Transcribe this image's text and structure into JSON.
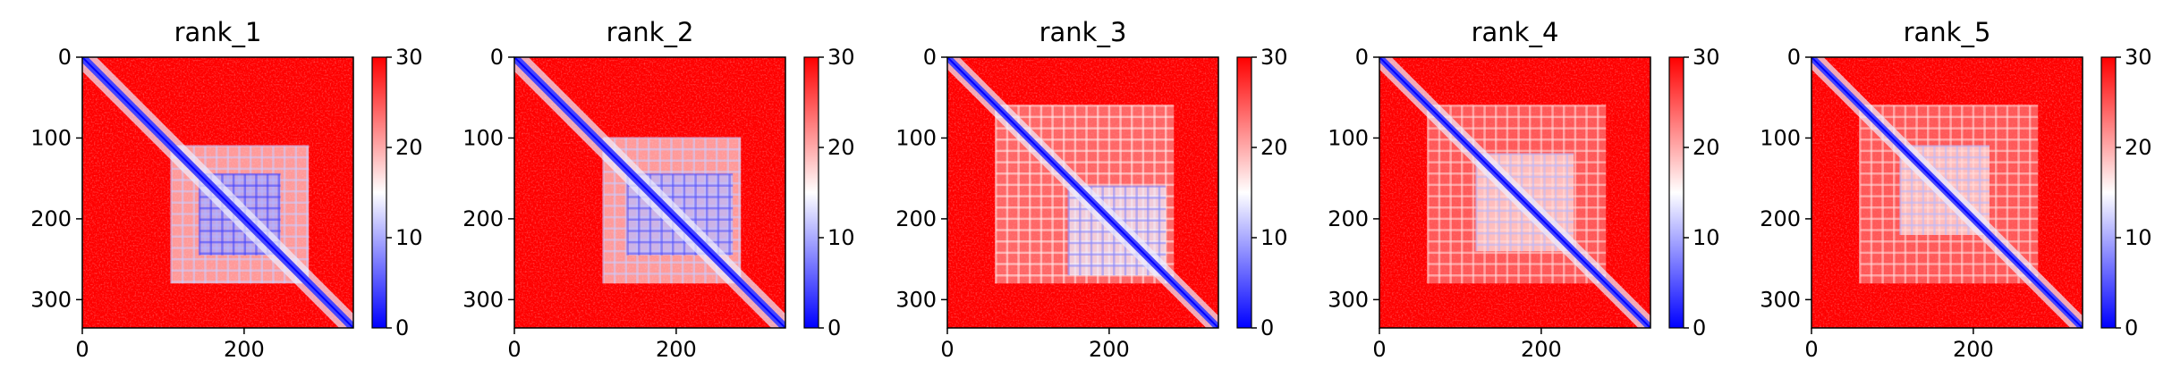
{
  "chart_data": [
    {
      "type": "heatmap",
      "title": "rank_1",
      "xlabel": "",
      "ylabel": "",
      "xlim": [
        0,
        335
      ],
      "ylim": [
        335,
        0
      ],
      "xticks": [
        0,
        200
      ],
      "yticks": [
        0,
        100,
        200,
        300
      ],
      "colorbar": {
        "min": 0,
        "max": 30,
        "ticks": [
          0,
          10,
          20,
          30
        ],
        "colormap": [
          "#0000ff",
          "#ffffff",
          "#ff0000"
        ]
      },
      "diagonal_band_width": 7,
      "blocks": [
        {
          "x0": 110,
          "x1": 280,
          "y0": 110,
          "y1": 280,
          "level": 18,
          "grid": true
        },
        {
          "x0": 145,
          "x1": 245,
          "y0": 145,
          "y1": 245,
          "level": 10,
          "grid": true
        }
      ]
    },
    {
      "type": "heatmap",
      "title": "rank_2",
      "xlabel": "",
      "ylabel": "",
      "xlim": [
        0,
        335
      ],
      "ylim": [
        335,
        0
      ],
      "xticks": [
        0,
        200
      ],
      "yticks": [
        0,
        100,
        200,
        300
      ],
      "colorbar": {
        "min": 0,
        "max": 30,
        "ticks": [
          0,
          10,
          20,
          30
        ],
        "colormap": [
          "#0000ff",
          "#ffffff",
          "#ff0000"
        ]
      },
      "diagonal_band_width": 7,
      "blocks": [
        {
          "x0": 110,
          "x1": 280,
          "y0": 100,
          "y1": 280,
          "level": 18,
          "grid": true
        },
        {
          "x0": 140,
          "x1": 270,
          "y0": 145,
          "y1": 245,
          "level": 11,
          "grid": true
        }
      ]
    },
    {
      "type": "heatmap",
      "title": "rank_3",
      "xlabel": "",
      "ylabel": "",
      "xlim": [
        0,
        335
      ],
      "ylim": [
        335,
        0
      ],
      "xticks": [
        0,
        200
      ],
      "yticks": [
        0,
        100,
        200,
        300
      ],
      "colorbar": {
        "min": 0,
        "max": 30,
        "ticks": [
          0,
          10,
          20,
          30
        ],
        "colormap": [
          "#0000ff",
          "#ffffff",
          "#ff0000"
        ]
      },
      "diagonal_band_width": 6,
      "blocks": [
        {
          "x0": 60,
          "x1": 280,
          "y0": 60,
          "y1": 280,
          "level": 22,
          "grid": true
        },
        {
          "x0": 150,
          "x1": 270,
          "y0": 160,
          "y1": 270,
          "level": 14,
          "grid": true
        }
      ]
    },
    {
      "type": "heatmap",
      "title": "rank_4",
      "xlabel": "",
      "ylabel": "",
      "xlim": [
        0,
        335
      ],
      "ylim": [
        335,
        0
      ],
      "xticks": [
        0,
        200
      ],
      "yticks": [
        0,
        100,
        200,
        300
      ],
      "colorbar": {
        "min": 0,
        "max": 30,
        "ticks": [
          0,
          10,
          20,
          30
        ],
        "colormap": [
          "#0000ff",
          "#ffffff",
          "#ff0000"
        ]
      },
      "diagonal_band_width": 6,
      "blocks": [
        {
          "x0": 60,
          "x1": 280,
          "y0": 60,
          "y1": 280,
          "level": 23,
          "grid": true
        },
        {
          "x0": 120,
          "x1": 240,
          "y0": 120,
          "y1": 240,
          "level": 17,
          "grid": true
        }
      ]
    },
    {
      "type": "heatmap",
      "title": "rank_5",
      "xlabel": "",
      "ylabel": "",
      "xlim": [
        0,
        335
      ],
      "ylim": [
        335,
        0
      ],
      "xticks": [
        0,
        200
      ],
      "yticks": [
        0,
        100,
        200,
        300
      ],
      "colorbar": {
        "min": 0,
        "max": 30,
        "ticks": [
          0,
          10,
          20,
          30
        ],
        "colormap": [
          "#0000ff",
          "#ffffff",
          "#ff0000"
        ]
      },
      "diagonal_band_width": 6,
      "blocks": [
        {
          "x0": 60,
          "x1": 280,
          "y0": 60,
          "y1": 280,
          "level": 23,
          "grid": true
        },
        {
          "x0": 110,
          "x1": 220,
          "y0": 110,
          "y1": 220,
          "level": 17,
          "grid": true
        }
      ]
    }
  ]
}
